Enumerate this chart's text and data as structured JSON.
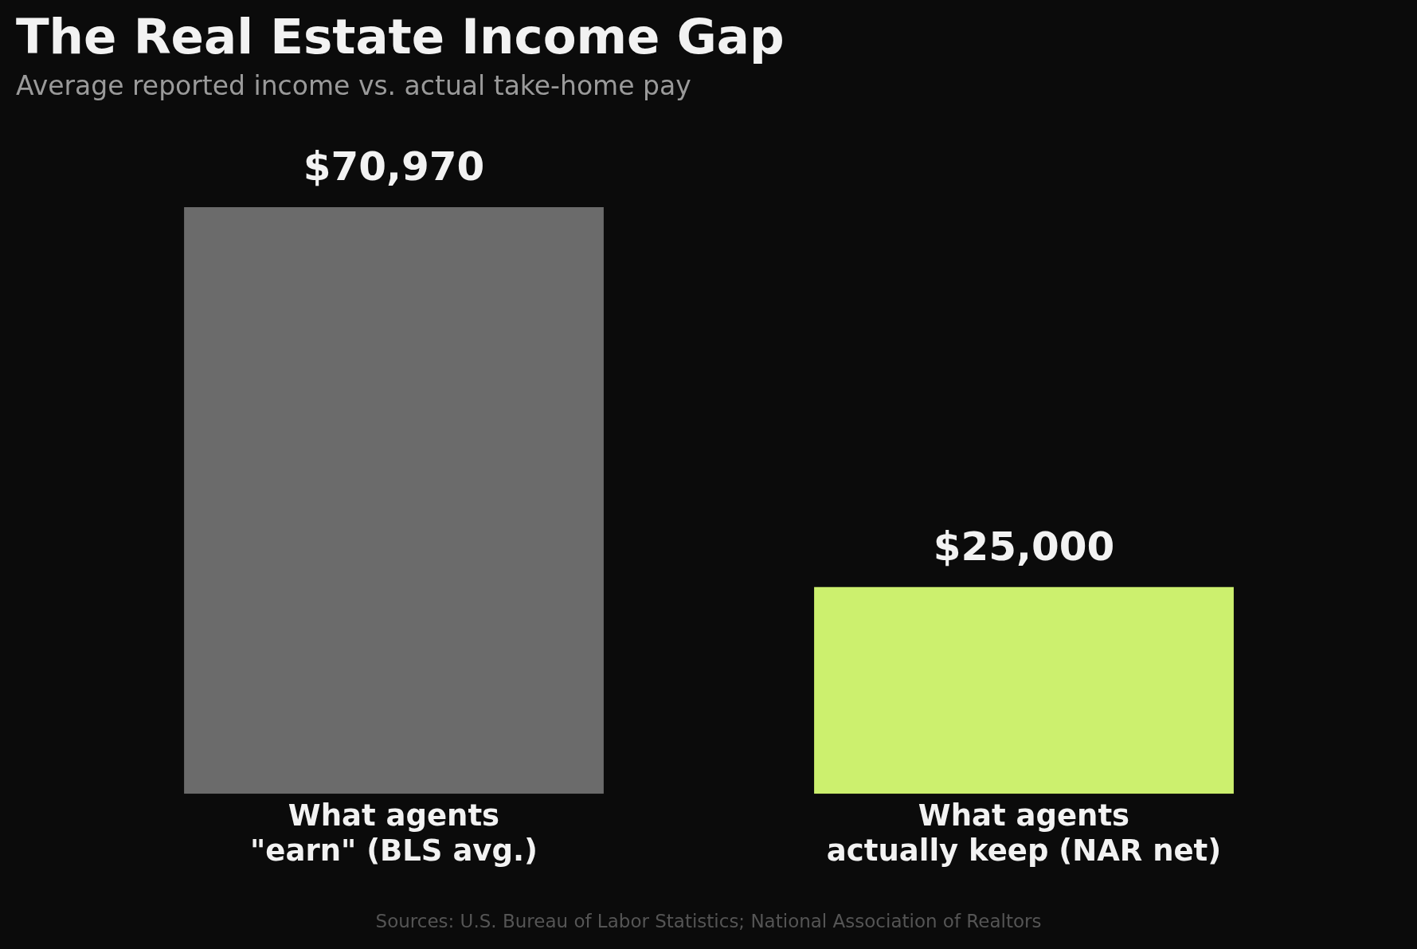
{
  "chart_data": {
    "type": "bar",
    "title": "The Real Estate Income Gap",
    "subtitle": "Average reported income vs. actual take-home pay",
    "categories": [
      "What agents \"earn\" (BLS avg.)",
      "What agents actually keep (NAR net)"
    ],
    "values": [
      70970,
      25000
    ],
    "colors": [
      "#6b6b6b",
      "#ccf06e"
    ],
    "value_labels": [
      "$70,970",
      "$25,000"
    ],
    "annotations": [
      "Sources: U.S. Bureau of Labor Statistics; National Association of Realtors"
    ],
    "tick_labels": "x"
  }
}
